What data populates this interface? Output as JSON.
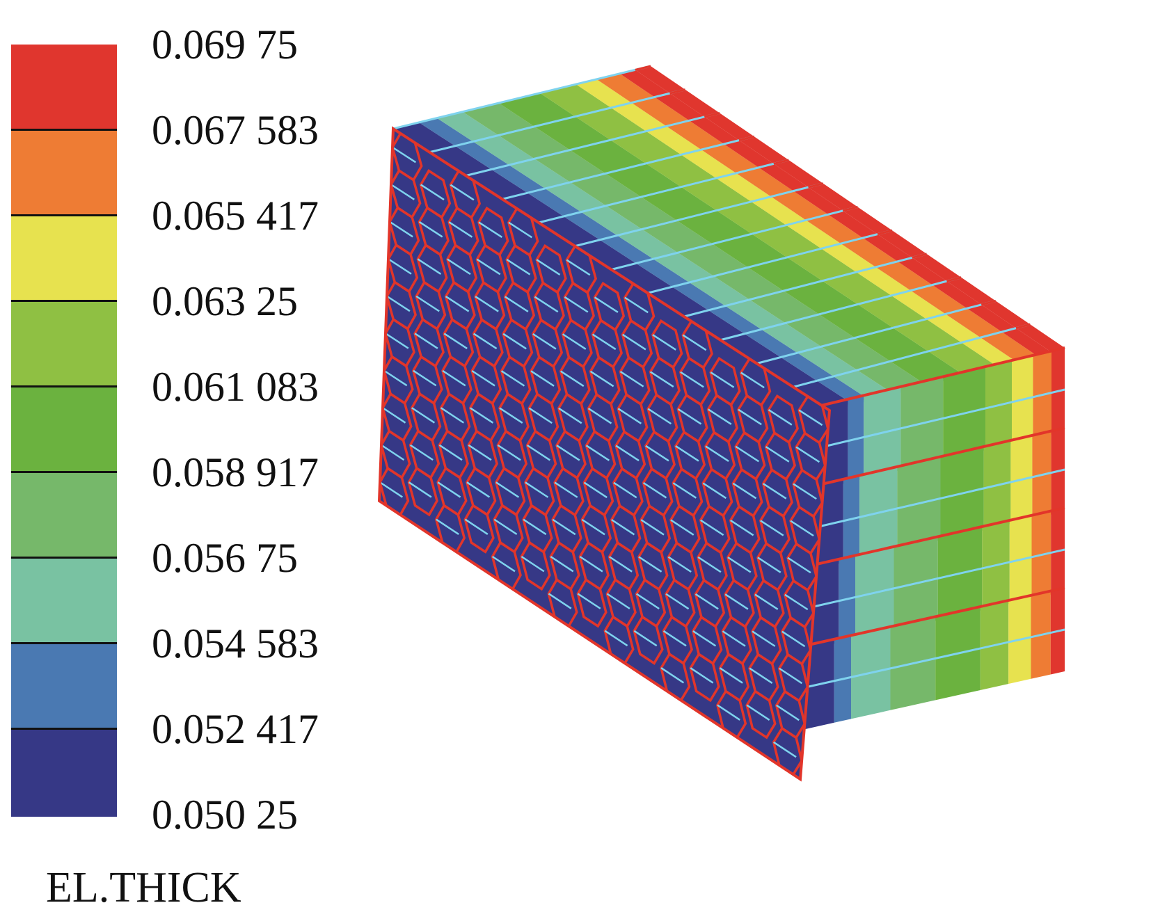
{
  "legend": {
    "title": "EL.THICK",
    "labels": [
      "0.069 75",
      "0.067 583",
      "0.065 417",
      "0.063 25",
      "0.061 083",
      "0.058 917",
      "0.056 75",
      "0.054 583",
      "0.052 417",
      "0.050 25"
    ],
    "bands": [
      {
        "color": "#e0362e"
      },
      {
        "color": "#ee7c34"
      },
      {
        "color": "#e7e24f"
      },
      {
        "color": "#8fc043"
      },
      {
        "color": "#6bb23f"
      },
      {
        "color": "#76b86a"
      },
      {
        "color": "#79c2a2"
      },
      {
        "color": "#4a79b2"
      },
      {
        "color": "#363886"
      }
    ]
  },
  "model": {
    "cell_edge_color": "#e2352a",
    "strip_line_color": "#7fd3ee",
    "base_color": "#363886"
  }
}
